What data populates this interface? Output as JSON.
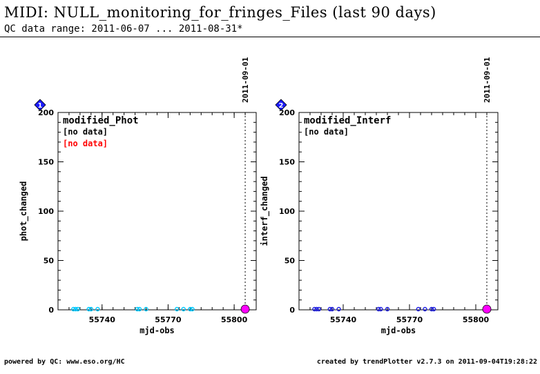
{
  "header": {
    "title": "MIDI: NULL_monitoring_for_fringes_Files (last 90 days)",
    "subtitle": "QC data range: 2011-06-07 ... 2011-08-31*"
  },
  "footer": {
    "left": "powered by QC: www.eso.org/HC",
    "right": "created by trendPlotter v2.7.3 on 2011-09-04T19:28:22"
  },
  "colors": {
    "panel1_points": "#00c8ff",
    "panel2_points": "#2020e0",
    "today_marker": "#ff00ff",
    "badge": "#1a1aff",
    "no_data_alt": "#ff0000"
  },
  "chart_data": [
    {
      "type": "scatter",
      "badge": "1",
      "xlabel": "mjd-obs",
      "ylabel": "phot_changed",
      "xlim": [
        55720,
        55810
      ],
      "ylim": [
        0,
        200
      ],
      "xticks": [
        55740,
        55770,
        55800
      ],
      "yticks": [
        0,
        50,
        100,
        150,
        200
      ],
      "marker_line_label": "2011-09-01",
      "marker_line_x": 55805,
      "legend": {
        "title": "modified_Phot",
        "entries": [
          "[no data]",
          "[no data]"
        ]
      },
      "series": [
        {
          "values": [
            [
              55727,
              0
            ],
            [
              55728,
              0
            ],
            [
              55729,
              0
            ],
            [
              55734,
              0
            ],
            [
              55735,
              0
            ],
            [
              55738,
              0
            ],
            [
              55756,
              0
            ],
            [
              55757,
              0
            ],
            [
              55760,
              0
            ],
            [
              55774,
              0
            ],
            [
              55777,
              0
            ],
            [
              55780,
              0
            ],
            [
              55781,
              0
            ]
          ]
        }
      ],
      "today": [
        55805,
        0
      ]
    },
    {
      "type": "scatter",
      "badge": "2",
      "xlabel": "mjd-obs",
      "ylabel": "interf_changed",
      "xlim": [
        55720,
        55810
      ],
      "ylim": [
        0,
        200
      ],
      "xticks": [
        55740,
        55770,
        55800
      ],
      "yticks": [
        0,
        50,
        100,
        150,
        200
      ],
      "marker_line_label": "2011-09-01",
      "marker_line_x": 55805,
      "legend": {
        "title": "modified_Interf",
        "entries": [
          "[no data]"
        ]
      },
      "series": [
        {
          "values": [
            [
              55727,
              0
            ],
            [
              55728,
              0
            ],
            [
              55729,
              0
            ],
            [
              55734,
              0
            ],
            [
              55735,
              0
            ],
            [
              55738,
              0
            ],
            [
              55756,
              0
            ],
            [
              55757,
              0
            ],
            [
              55760,
              0
            ],
            [
              55774,
              0
            ],
            [
              55777,
              0
            ],
            [
              55780,
              0
            ],
            [
              55781,
              0
            ]
          ]
        }
      ],
      "today": [
        55805,
        0
      ]
    }
  ]
}
